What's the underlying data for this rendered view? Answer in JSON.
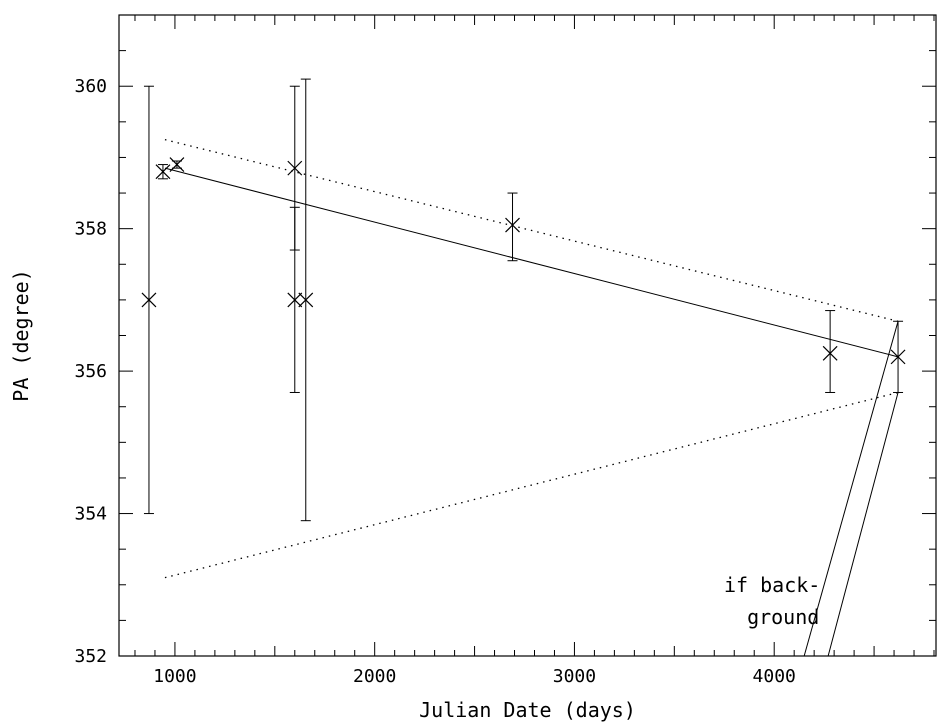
{
  "chart_data": {
    "type": "scatter",
    "title": "",
    "xlabel": "Julian Date (days)",
    "ylabel": "PA (degree)",
    "xlim": [
      720,
      4810
    ],
    "ylim": [
      352,
      361
    ],
    "x_ticks": [
      1000,
      2000,
      3000,
      4000
    ],
    "y_ticks": [
      352,
      354,
      356,
      358,
      360
    ],
    "grid": false,
    "legend": "none",
    "points": [
      {
        "x": 870,
        "y": 357.0,
        "yerr_low": 354.0,
        "yerr_high": 360.0
      },
      {
        "x": 940,
        "y": 358.8,
        "yerr_low": 358.7,
        "yerr_high": 358.9
      },
      {
        "x": 1010,
        "y": 358.9,
        "yerr_low": 358.85,
        "yerr_high": 358.95
      },
      {
        "x": 1600,
        "y": 358.85,
        "yerr_low": 357.7,
        "yerr_high": 360.0
      },
      {
        "x": 1600,
        "y": 357.0,
        "yerr_low": 355.7,
        "yerr_high": 358.3
      },
      {
        "x": 1655,
        "y": 357.0,
        "yerr_low": 353.9,
        "yerr_high": 360.1
      },
      {
        "x": 2690,
        "y": 358.05,
        "yerr_low": 357.55,
        "yerr_high": 358.5
      },
      {
        "x": 4280,
        "y": 356.25,
        "yerr_low": 355.7,
        "yerr_high": 356.85
      },
      {
        "x": 4620,
        "y": 356.2,
        "yerr_low": 355.7,
        "yerr_high": 356.7
      }
    ],
    "fit_line": {
      "x": [
        950,
        4620
      ],
      "y": [
        358.85,
        356.2
      ]
    },
    "fit_bounds": [
      {
        "x": [
          950,
          4620
        ],
        "y": [
          359.25,
          356.7
        ]
      },
      {
        "x": [
          950,
          4620
        ],
        "y": [
          353.1,
          355.7
        ]
      }
    ],
    "background_track": [
      {
        "x": [
          4620,
          4150
        ],
        "y": [
          356.7,
          352.0
        ]
      },
      {
        "x": [
          4620,
          4270
        ],
        "y": [
          355.7,
          352.0
        ]
      }
    ],
    "annotation": {
      "lines": [
        "if back-",
        "ground"
      ],
      "x": 4020,
      "y": 353.0
    }
  }
}
